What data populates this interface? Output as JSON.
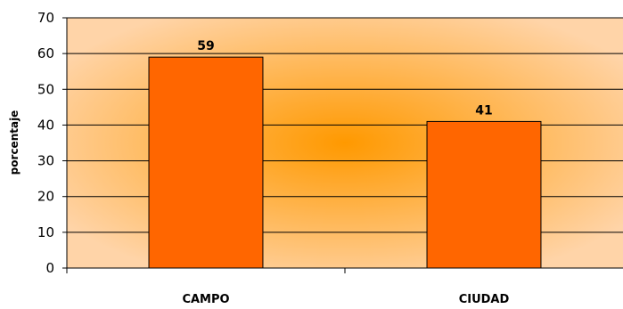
{
  "chart_data": {
    "type": "bar",
    "categories": [
      "CAMPO",
      "CIUDAD"
    ],
    "values": [
      59,
      41
    ],
    "data_labels": [
      "59",
      "41"
    ],
    "title": "",
    "xlabel": "",
    "ylabel": "porcentaje",
    "ylim": [
      0,
      70
    ],
    "yticks": [
      "0",
      "10",
      "20",
      "30",
      "40",
      "50",
      "60",
      "70"
    ],
    "grid": true,
    "legend": "none",
    "colors": {
      "bar_fill": "#ff6600",
      "bar_stroke": "#000000",
      "plot_center": "#ff9900",
      "plot_edge": "#ffd4a8",
      "gridline": "#000000"
    }
  }
}
